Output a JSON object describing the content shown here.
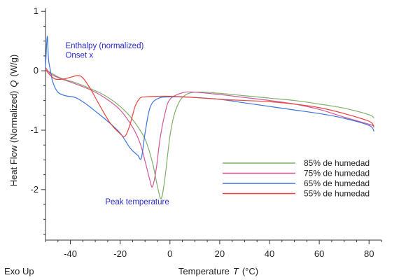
{
  "chart_data": {
    "type": "line",
    "title": "",
    "xlabel": "Temperature",
    "xlabel_symbol": "T",
    "xlabel_unit": "(°C)",
    "ylabel": "Heat Flow (Normalized)",
    "ylabel_symbol": "Q",
    "ylabel_unit": "(W/g)",
    "corner_label": "Exo Up",
    "xlim": [
      -50,
      85
    ],
    "ylim": [
      -2.85,
      1.05
    ],
    "x_ticks": [
      -40,
      -20,
      0,
      20,
      40,
      60,
      80
    ],
    "y_ticks": [
      1,
      0,
      -1,
      -2
    ],
    "grid": false,
    "legend_position": "bottom-right",
    "annotations": [
      {
        "text": "Enthalpy (normalized)",
        "x": -42,
        "y": 0.38
      },
      {
        "text": "Onset x",
        "x": -42,
        "y": 0.22
      },
      {
        "text": "Peak temperature",
        "x": -26,
        "y": -2.25
      }
    ],
    "series": [
      {
        "name": "85% de humedad",
        "color": "#7fb069",
        "x": [
          -50,
          -48,
          -44,
          -38,
          -32,
          -26,
          -20,
          -15,
          -10,
          -7,
          -5,
          -3.5,
          -2,
          0,
          2,
          5,
          10,
          20,
          30,
          40,
          50,
          60,
          70,
          80,
          82
        ],
        "y": [
          0.02,
          -0.03,
          -0.12,
          -0.2,
          -0.3,
          -0.42,
          -0.6,
          -0.82,
          -1.15,
          -1.55,
          -1.95,
          -2.15,
          -1.8,
          -1.1,
          -0.7,
          -0.45,
          -0.36,
          -0.38,
          -0.42,
          -0.46,
          -0.5,
          -0.56,
          -0.63,
          -0.74,
          -0.8
        ]
      },
      {
        "name": "75% de humedad",
        "color": "#d0569a",
        "x": [
          -50,
          -48,
          -44,
          -38,
          -32,
          -26,
          -20,
          -15,
          -12,
          -10,
          -8,
          -7,
          -5.5,
          -4,
          -2,
          0,
          5,
          10,
          20,
          30,
          40,
          50,
          60,
          70,
          80,
          82
        ],
        "y": [
          0.06,
          -0.05,
          -0.13,
          -0.22,
          -0.32,
          -0.46,
          -0.66,
          -0.95,
          -1.22,
          -1.52,
          -1.85,
          -1.95,
          -1.65,
          -1.15,
          -0.72,
          -0.48,
          -0.37,
          -0.36,
          -0.4,
          -0.45,
          -0.5,
          -0.56,
          -0.65,
          -0.78,
          -0.9,
          -0.93
        ]
      },
      {
        "name": "65% de humedad",
        "color": "#3b74e0",
        "x": [
          -50,
          -49.3,
          -48.8,
          -48,
          -47,
          -45,
          -42,
          -38,
          -34,
          -30,
          -25,
          -20,
          -16,
          -13,
          -11.5,
          -10,
          -8,
          -5,
          0,
          10,
          20,
          30,
          40,
          50,
          60,
          70,
          80,
          82
        ],
        "y": [
          0.05,
          0.58,
          0.2,
          0.0,
          -0.2,
          -0.36,
          -0.42,
          -0.45,
          -0.55,
          -0.68,
          -0.85,
          -1.05,
          -1.3,
          -1.42,
          -1.47,
          -1.05,
          -0.62,
          -0.47,
          -0.44,
          -0.45,
          -0.48,
          -0.54,
          -0.6,
          -0.66,
          -0.72,
          -0.8,
          -0.92,
          -1.02
        ]
      },
      {
        "name": "55% de humedad",
        "color": "#e8433a",
        "x": [
          -50,
          -48,
          -46,
          -43,
          -40,
          -37,
          -35,
          -32,
          -28,
          -24,
          -20,
          -18,
          -16,
          -14,
          -12,
          -10,
          -5,
          0,
          10,
          20,
          30,
          40,
          50,
          60,
          70,
          80,
          82
        ],
        "y": [
          0.02,
          -0.08,
          -0.14,
          -0.14,
          -0.11,
          -0.08,
          -0.12,
          -0.3,
          -0.6,
          -0.88,
          -1.06,
          -1.1,
          -0.9,
          -0.6,
          -0.46,
          -0.44,
          -0.43,
          -0.43,
          -0.45,
          -0.48,
          -0.5,
          -0.52,
          -0.56,
          -0.62,
          -0.72,
          -0.85,
          -0.95
        ]
      }
    ]
  }
}
